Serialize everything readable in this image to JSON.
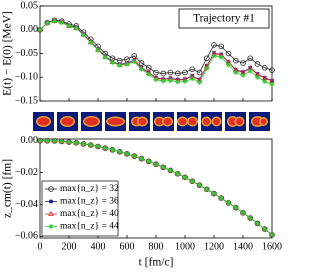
{
  "chart_data": [
    {
      "type": "line",
      "ylabel": "E(t) − E(0) [MeV]",
      "annotation": "Trajectory #1",
      "xlim": [
        0,
        1600
      ],
      "ylim": [
        -0.15,
        0.05
      ],
      "yticks": [
        {
          "value": -0.15,
          "label": "−0.15"
        },
        {
          "value": -0.1,
          "label": "−0.10"
        },
        {
          "value": -0.05,
          "label": "−0.05"
        },
        {
          "value": 0,
          "label": "0.00"
        },
        0.05
      ],
      "x": [
        0,
        50,
        100,
        150,
        200,
        250,
        300,
        350,
        400,
        450,
        500,
        550,
        600,
        650,
        700,
        750,
        800,
        850,
        900,
        950,
        1000,
        1050,
        1100,
        1150,
        1200,
        1250,
        1300,
        1350,
        1400,
        1450,
        1500,
        1550,
        1600
      ],
      "series": [
        {
          "color": "#222222",
          "marker": "circle-open",
          "values": [
            0,
            0.015,
            0.02,
            0.018,
            0.012,
            0.008,
            -0.005,
            -0.02,
            -0.035,
            -0.05,
            -0.06,
            -0.065,
            -0.062,
            -0.055,
            -0.07,
            -0.08,
            -0.09,
            -0.092,
            -0.09,
            -0.092,
            -0.09,
            -0.083,
            -0.09,
            -0.06,
            -0.032,
            -0.035,
            -0.05,
            -0.065,
            -0.07,
            -0.06,
            -0.072,
            -0.08,
            -0.085
          ]
        },
        {
          "color": "#1a1aa6",
          "marker": "square",
          "values": [
            0,
            0.014,
            0.019,
            0.016,
            0.009,
            0.005,
            -0.009,
            -0.025,
            -0.041,
            -0.056,
            -0.067,
            -0.073,
            -0.07,
            -0.064,
            -0.08,
            -0.09,
            -0.101,
            -0.104,
            -0.102,
            -0.105,
            -0.104,
            -0.097,
            -0.105,
            -0.076,
            -0.049,
            -0.052,
            -0.068,
            -0.084,
            -0.089,
            -0.08,
            -0.093,
            -0.101,
            -0.107
          ]
        },
        {
          "color": "#e03030",
          "marker": "triangle-open",
          "values": [
            0,
            0.014,
            0.019,
            0.016,
            0.008,
            0.004,
            -0.01,
            -0.026,
            -0.042,
            -0.057,
            -0.068,
            -0.074,
            -0.071,
            -0.065,
            -0.081,
            -0.091,
            -0.102,
            -0.105,
            -0.103,
            -0.106,
            -0.105,
            -0.098,
            -0.106,
            -0.077,
            -0.05,
            -0.053,
            -0.069,
            -0.085,
            -0.09,
            -0.081,
            -0.094,
            -0.102,
            -0.108
          ]
        },
        {
          "color": "#33cc33",
          "marker": "star",
          "values": [
            0,
            0.014,
            0.018,
            0.015,
            0.008,
            0.003,
            -0.011,
            -0.027,
            -0.043,
            -0.058,
            -0.069,
            -0.075,
            -0.073,
            -0.067,
            -0.083,
            -0.094,
            -0.105,
            -0.108,
            -0.107,
            -0.11,
            -0.109,
            -0.103,
            -0.111,
            -0.082,
            -0.055,
            -0.058,
            -0.074,
            -0.09,
            -0.096,
            -0.087,
            -0.1,
            -0.109,
            -0.115
          ]
        }
      ]
    },
    {
      "type": "line",
      "ylabel": "z_cm(t) [fm]",
      "xlabel": "t [fm/c]",
      "xlim": [
        0,
        1600
      ],
      "xticks": [
        0,
        200,
        400,
        600,
        800,
        1000,
        1200,
        1400,
        1600
      ],
      "ylim": [
        -0.061,
        0.001
      ],
      "yticks": [
        {
          "value": -0.06,
          "label": "−0.06"
        },
        {
          "value": -0.04,
          "label": "−0.04"
        },
        {
          "value": -0.02,
          "label": "−0.02"
        },
        {
          "value": 0,
          "label": "0.00"
        }
      ],
      "legend": "lower left",
      "x": [
        0,
        50,
        100,
        150,
        200,
        250,
        300,
        350,
        400,
        450,
        500,
        550,
        600,
        650,
        700,
        750,
        800,
        850,
        900,
        950,
        1000,
        1050,
        1100,
        1150,
        1200,
        1250,
        1300,
        1350,
        1400,
        1450,
        1500,
        1550,
        1600
      ],
      "series": [
        {
          "name": "max{n_z} = 32",
          "color": "#222222",
          "marker": "circle-open",
          "values": [
            0,
            -0.0001,
            -0.0002,
            -0.0005,
            -0.0009,
            -0.0014,
            -0.0021,
            -0.0028,
            -0.0037,
            -0.0047,
            -0.0058,
            -0.007,
            -0.0083,
            -0.0097,
            -0.0113,
            -0.013,
            -0.0148,
            -0.0167,
            -0.0187,
            -0.0208,
            -0.023,
            -0.0254,
            -0.0279,
            -0.0305,
            -0.0332,
            -0.036,
            -0.039,
            -0.042,
            -0.0452,
            -0.0485,
            -0.0519,
            -0.0554,
            -0.059
          ]
        },
        {
          "name": "max{n_z} = 36",
          "color": "#1a1aa6",
          "marker": "square",
          "values": [
            0,
            -0.0001,
            -0.0002,
            -0.0005,
            -0.0009,
            -0.0014,
            -0.0021,
            -0.0028,
            -0.0037,
            -0.0047,
            -0.0058,
            -0.007,
            -0.0083,
            -0.0097,
            -0.0113,
            -0.013,
            -0.0148,
            -0.0167,
            -0.0187,
            -0.0208,
            -0.023,
            -0.0254,
            -0.0279,
            -0.0305,
            -0.0332,
            -0.036,
            -0.039,
            -0.042,
            -0.0452,
            -0.0485,
            -0.0519,
            -0.0554,
            -0.059
          ]
        },
        {
          "name": "max{n_z} = 40",
          "color": "#e03030",
          "marker": "triangle-open",
          "values": [
            0,
            -0.0001,
            -0.0002,
            -0.0005,
            -0.0009,
            -0.0014,
            -0.0021,
            -0.0028,
            -0.0037,
            -0.0047,
            -0.0058,
            -0.007,
            -0.0083,
            -0.0097,
            -0.0113,
            -0.013,
            -0.0148,
            -0.0167,
            -0.0187,
            -0.0208,
            -0.023,
            -0.0254,
            -0.0279,
            -0.0305,
            -0.0332,
            -0.036,
            -0.039,
            -0.042,
            -0.0452,
            -0.0485,
            -0.0519,
            -0.0554,
            -0.059
          ]
        },
        {
          "name": "max{n_z} = 44",
          "color": "#33cc33",
          "marker": "star",
          "values": [
            0,
            -0.0001,
            -0.0002,
            -0.0005,
            -0.0009,
            -0.0014,
            -0.0021,
            -0.0028,
            -0.0037,
            -0.0047,
            -0.0058,
            -0.007,
            -0.0083,
            -0.0097,
            -0.0113,
            -0.013,
            -0.0148,
            -0.0167,
            -0.0187,
            -0.0208,
            -0.023,
            -0.0254,
            -0.0279,
            -0.0305,
            -0.0332,
            -0.036,
            -0.039,
            -0.042,
            -0.0452,
            -0.0485,
            -0.0519,
            -0.0554,
            -0.059
          ]
        }
      ]
    }
  ]
}
